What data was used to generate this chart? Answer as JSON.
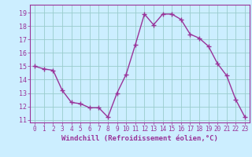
{
  "x": [
    0,
    1,
    2,
    3,
    4,
    5,
    6,
    7,
    8,
    9,
    10,
    11,
    12,
    13,
    14,
    15,
    16,
    17,
    18,
    19,
    20,
    21,
    22,
    23
  ],
  "y": [
    15.0,
    14.8,
    14.7,
    13.2,
    12.3,
    12.2,
    11.9,
    11.9,
    11.2,
    13.0,
    14.4,
    16.6,
    18.9,
    18.1,
    18.9,
    18.9,
    18.5,
    17.4,
    17.1,
    16.5,
    15.2,
    14.3,
    12.5,
    11.2
  ],
  "line_color": "#993399",
  "marker": "+",
  "marker_size": 4,
  "bg_color": "#cceeff",
  "grid_color": "#99cccc",
  "xlabel": "Windchill (Refroidissement éolien,°C)",
  "xlabel_color": "#993399",
  "tick_color": "#993399",
  "ylim": [
    10.8,
    19.6
  ],
  "xlim": [
    -0.5,
    23.5
  ],
  "yticks": [
    11,
    12,
    13,
    14,
    15,
    16,
    17,
    18,
    19
  ],
  "xticks": [
    0,
    1,
    2,
    3,
    4,
    5,
    6,
    7,
    8,
    9,
    10,
    11,
    12,
    13,
    14,
    15,
    16,
    17,
    18,
    19,
    20,
    21,
    22,
    23
  ]
}
